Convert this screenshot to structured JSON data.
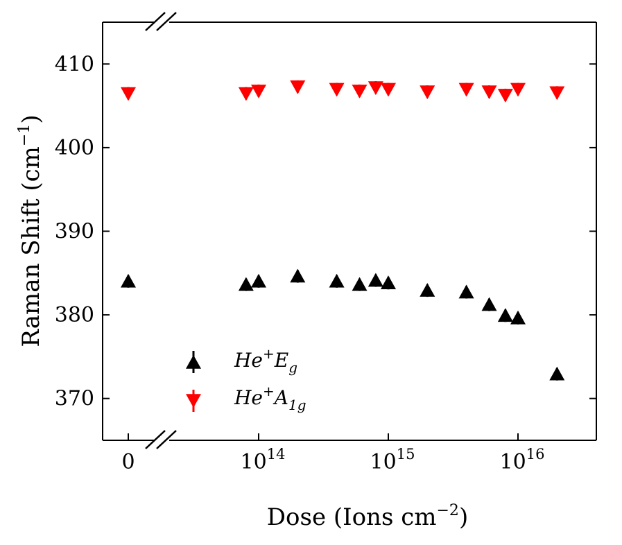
{
  "chart_data": {
    "type": "scatter",
    "xlabel": "Dose (Ions cm⁻²)",
    "ylabel": "Raman Shift (cm⁻¹)",
    "x_scale": "log with broken axis at zero",
    "x_ticks": [
      {
        "value": 0,
        "label": "0"
      },
      {
        "value": 100000000000000.0,
        "base": "10",
        "exp": "14"
      },
      {
        "value": 1000000000000000.0,
        "base": "10",
        "exp": "15"
      },
      {
        "value": 1e+16,
        "base": "10",
        "exp": "16"
      }
    ],
    "y_ticks": [
      370,
      380,
      390,
      400,
      410
    ],
    "ylim": [
      365,
      415
    ],
    "legend_position": "lower-left",
    "series": [
      {
        "name": "He+ Eg",
        "color": "#000000",
        "marker": "triangle-up",
        "points": [
          {
            "x": 0,
            "y": 384.0
          },
          {
            "x": 80000000000000.0,
            "y": 383.6
          },
          {
            "x": 100000000000000.0,
            "y": 384.0
          },
          {
            "x": 200000000000000.0,
            "y": 384.6
          },
          {
            "x": 400000000000000.0,
            "y": 384.0
          },
          {
            "x": 600000000000000.0,
            "y": 383.6
          },
          {
            "x": 800000000000000.0,
            "y": 384.1
          },
          {
            "x": 1000000000000000.0,
            "y": 383.8
          },
          {
            "x": 2000000000000000.0,
            "y": 382.9
          },
          {
            "x": 4000000000000000.0,
            "y": 382.7
          },
          {
            "x": 6000000000000000.0,
            "y": 381.2
          },
          {
            "x": 8000000000000000.0,
            "y": 379.9
          },
          {
            "x": 1e+16,
            "y": 379.6
          },
          {
            "x": 2e+16,
            "y": 372.9
          }
        ]
      },
      {
        "name": "He+ A1g",
        "color": "#ff0000",
        "marker": "triangle-down",
        "points": [
          {
            "x": 0,
            "y": 406.5
          },
          {
            "x": 80000000000000.0,
            "y": 406.5
          },
          {
            "x": 100000000000000.0,
            "y": 406.8
          },
          {
            "x": 200000000000000.0,
            "y": 407.3
          },
          {
            "x": 400000000000000.0,
            "y": 407.0
          },
          {
            "x": 600000000000000.0,
            "y": 406.8
          },
          {
            "x": 800000000000000.0,
            "y": 407.2
          },
          {
            "x": 1000000000000000.0,
            "y": 407.0
          },
          {
            "x": 2000000000000000.0,
            "y": 406.7
          },
          {
            "x": 4000000000000000.0,
            "y": 407.0
          },
          {
            "x": 6000000000000000.0,
            "y": 406.7
          },
          {
            "x": 8000000000000000.0,
            "y": 406.3
          },
          {
            "x": 1e+16,
            "y": 407.0
          },
          {
            "x": 2e+16,
            "y": 406.6
          }
        ]
      }
    ]
  }
}
